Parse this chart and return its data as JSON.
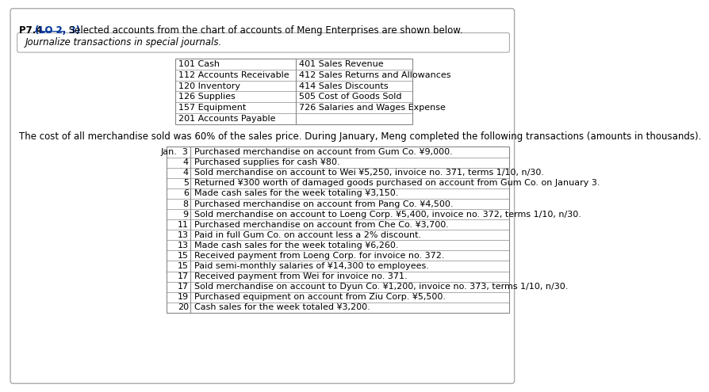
{
  "title_prefix": "P7.4 ",
  "title_lo": "(LO 2, 3)",
  "title_rest": " Selected accounts from the chart of accounts of Meng Enterprises are shown below.",
  "subtitle": "Journalize transactions in special journals.",
  "accounts_left": [
    "101 Cash",
    "112 Accounts Receivable",
    "120 Inventory",
    "126 Supplies",
    "157 Equipment",
    "201 Accounts Payable"
  ],
  "accounts_right": [
    "401 Sales Revenue",
    "412 Sales Returns and Allowances",
    "414 Sales Discounts",
    "505 Cost of Goods Sold",
    "726 Salaries and Wages Expense",
    ""
  ],
  "cost_text": "The cost of all merchandise sold was 60% of the sales price. During January, Meng completed the following transactions (amounts in thousands).",
  "transactions": [
    [
      "Jan.  3",
      "Purchased merchandise on account from Gum Co. ¥9,000."
    ],
    [
      "4",
      "Purchased supplies for cash ¥80."
    ],
    [
      "4",
      "Sold merchandise on account to Wei ¥5,250, invoice no. 371, terms 1/10, n/30."
    ],
    [
      "5",
      "Returned ¥300 worth of damaged goods purchased on account from Gum Co. on January 3."
    ],
    [
      "6",
      "Made cash sales for the week totaling ¥3,150."
    ],
    [
      "8",
      "Purchased merchandise on account from Pang Co. ¥4,500."
    ],
    [
      "9",
      "Sold merchandise on account to Loeng Corp. ¥5,400, invoice no. 372, terms 1/10, n/30."
    ],
    [
      "11",
      "Purchased merchandise on account from Che Co. ¥3,700."
    ],
    [
      "13",
      "Paid in full Gum Co. on account less a 2% discount."
    ],
    [
      "13",
      "Made cash sales for the week totaling ¥6,260."
    ],
    [
      "15",
      "Received payment from Loeng Corp. for invoice no. 372."
    ],
    [
      "15",
      "Paid semi-monthly salaries of ¥14,300 to employees."
    ],
    [
      "17",
      "Received payment from Wei for invoice no. 371."
    ],
    [
      "17",
      "Sold merchandise on account to Dyun Co. ¥1,200, invoice no. 373, terms 1/10, n/30."
    ],
    [
      "19",
      "Purchased equipment on account from Ziu Corp. ¥5,500."
    ],
    [
      "20",
      "Cash sales for the week totaled ¥3,200."
    ]
  ],
  "bg_color": "#ffffff",
  "border_color": "#aaaaaa",
  "lo_color": "#003399",
  "text_color": "#000000",
  "table_border_color": "#888888",
  "fontsize_main": 8.5
}
